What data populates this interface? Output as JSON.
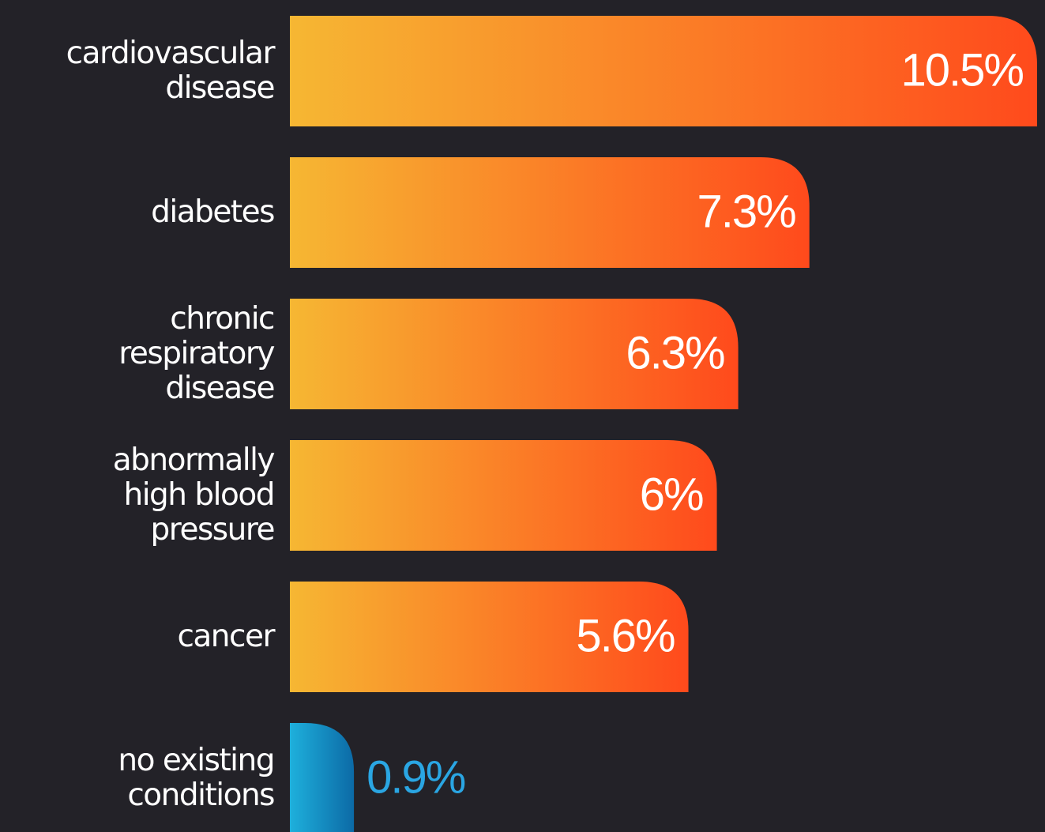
{
  "chart_data": {
    "type": "hbar",
    "categories": [
      "cardiovascular\ndisease",
      "diabetes",
      "chronic\nrespiratory\ndisease",
      "abnormally\nhigh blood\npressure",
      "cancer",
      "no existing\nconditions"
    ],
    "values": [
      10.5,
      7.3,
      6.3,
      6,
      5.6,
      0.9
    ],
    "value_labels": [
      "10.5%",
      "7.3%",
      "6.3%",
      "6%",
      "5.6%",
      "0.9%"
    ],
    "colors": [
      [
        "#f6b733",
        "#ff4a1c"
      ],
      [
        "#f6b733",
        "#ff4a1c"
      ],
      [
        "#f6b733",
        "#ff4a1c"
      ],
      [
        "#f6b733",
        "#ff4a1c"
      ],
      [
        "#f6b733",
        "#ff4a1c"
      ],
      [
        "#1eb0dc",
        "#0c6aa6"
      ]
    ],
    "label_outside_color": "#2aa6e3",
    "xlim": [
      0,
      10.5
    ]
  }
}
